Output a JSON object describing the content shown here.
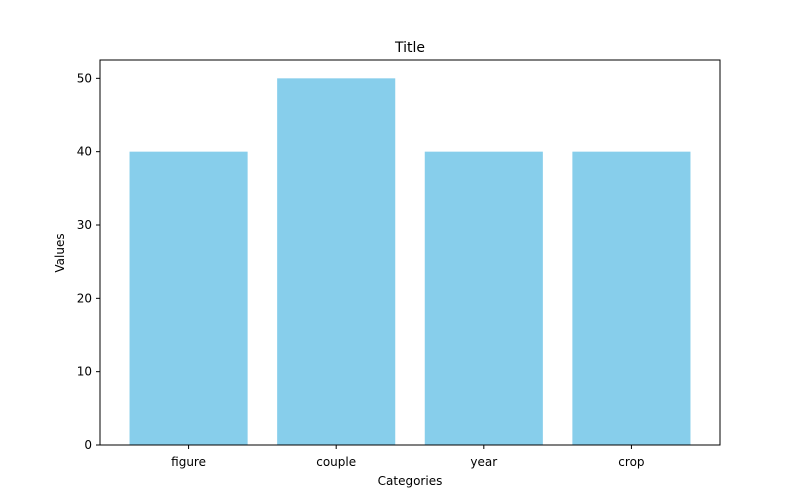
{
  "chart_data": {
    "type": "bar",
    "title": "Title",
    "xlabel": "Categories",
    "ylabel": "Values",
    "categories": [
      "figure",
      "couple",
      "year",
      "crop"
    ],
    "values": [
      40,
      50,
      40,
      40
    ],
    "ylim": [
      0,
      52.5
    ],
    "yticks": [
      0,
      10,
      20,
      30,
      40,
      50
    ],
    "grid": false,
    "bar_color": "#87CEEB",
    "axis_color": "#000000"
  }
}
